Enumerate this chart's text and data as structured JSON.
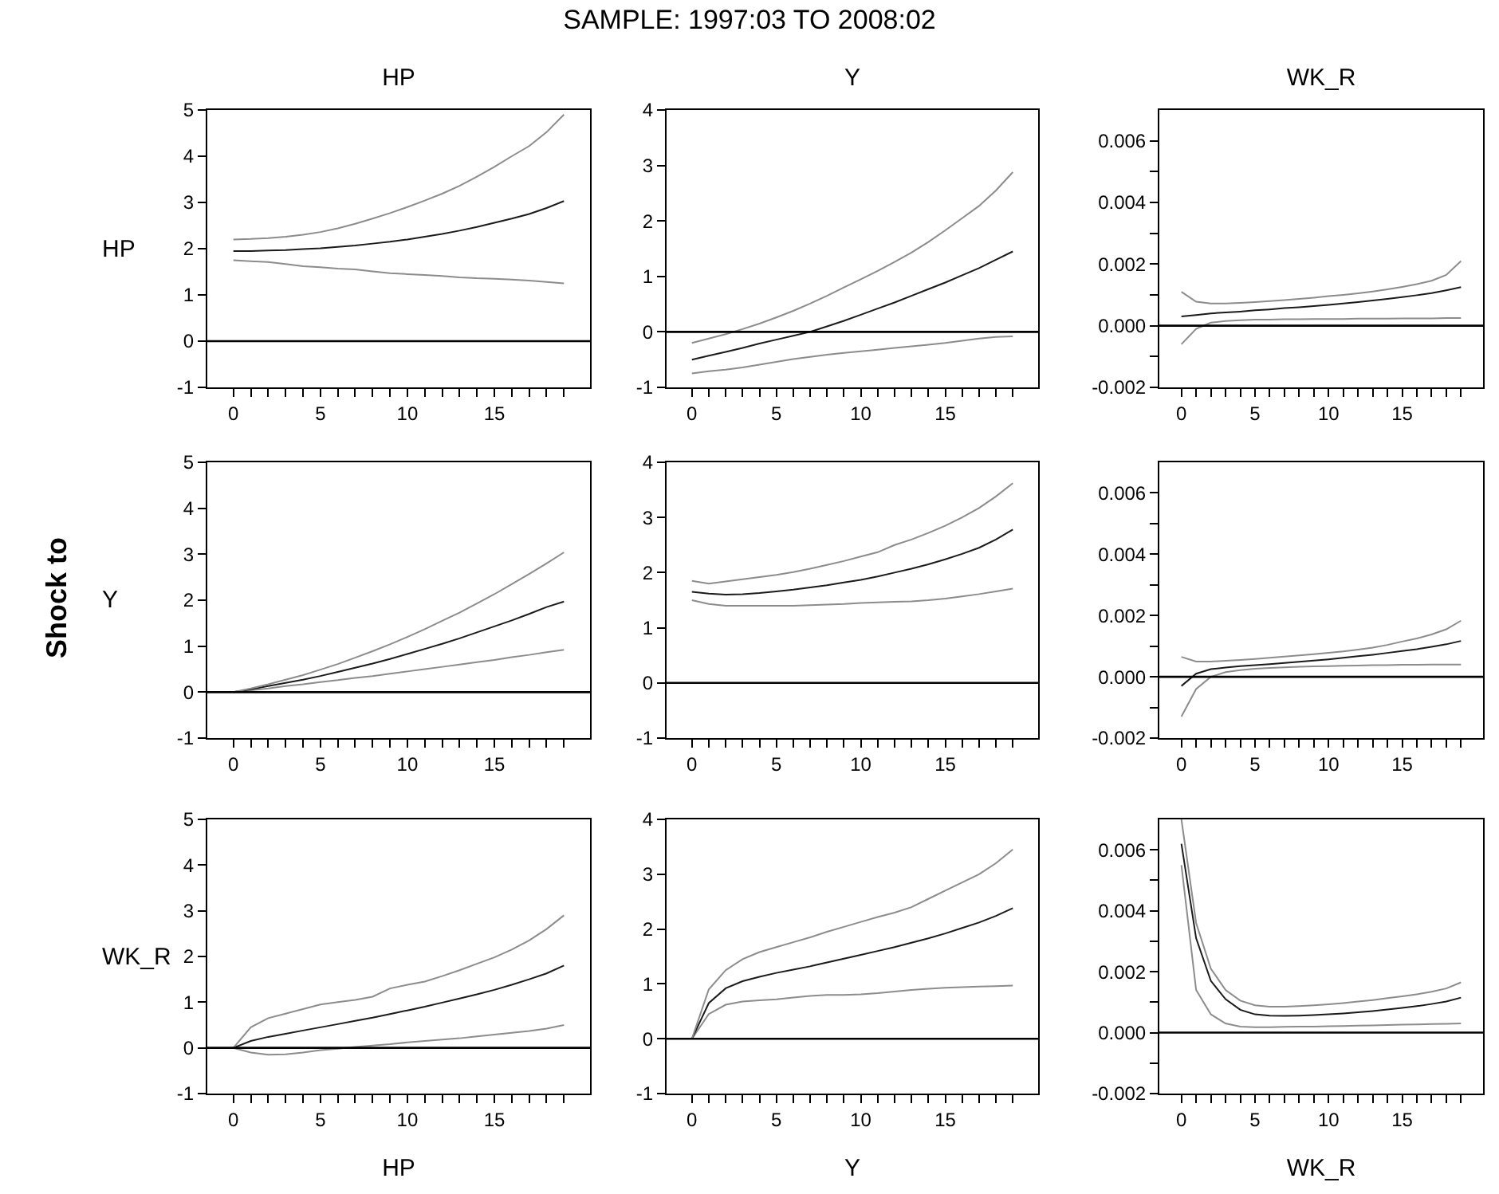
{
  "chart_data": [
    {
      "type": "line",
      "title": "HP",
      "ylabel": "HP",
      "annotations": [
        "SAMPLE: 1997:03 TO 2008:02",
        "Shock to"
      ],
      "x": [
        0,
        1,
        2,
        3,
        4,
        5,
        6,
        7,
        8,
        9,
        10,
        11,
        12,
        13,
        14,
        15,
        16,
        17,
        18,
        19
      ],
      "xlim": [
        -1.5,
        20.5
      ],
      "xticks": [
        0,
        {
          "value": 1,
          "label": null
        },
        {
          "value": 2,
          "label": null
        },
        {
          "value": 3,
          "label": null
        },
        {
          "value": 4,
          "label": null
        },
        5,
        {
          "value": 6,
          "label": null
        },
        {
          "value": 7,
          "label": null
        },
        {
          "value": 8,
          "label": null
        },
        {
          "value": 9,
          "label": null
        },
        10,
        {
          "value": 11,
          "label": null
        },
        {
          "value": 12,
          "label": null
        },
        {
          "value": 13,
          "label": null
        },
        {
          "value": 14,
          "label": null
        },
        15,
        {
          "value": 16,
          "label": null
        },
        {
          "value": 17,
          "label": null
        },
        {
          "value": 18,
          "label": null
        },
        {
          "value": 19,
          "label": null
        }
      ],
      "ylim": [
        -1,
        5
      ],
      "yticks": [
        -1,
        0,
        1,
        2,
        3,
        4,
        5
      ],
      "ref_lines": [
        {
          "axis": "y",
          "value": 0,
          "color": "#000000"
        }
      ],
      "series": [
        {
          "color": "#8c8c8c",
          "values": [
            1.75,
            1.73,
            1.71,
            1.67,
            1.62,
            1.6,
            1.57,
            1.55,
            1.51,
            1.47,
            1.45,
            1.43,
            1.41,
            1.38,
            1.36,
            1.35,
            1.33,
            1.31,
            1.28,
            1.25
          ]
        },
        {
          "color": "#1a1a1a",
          "values": [
            1.95,
            1.95,
            1.96,
            1.97,
            1.99,
            2.01,
            2.04,
            2.07,
            2.11,
            2.15,
            2.2,
            2.26,
            2.32,
            2.39,
            2.47,
            2.56,
            2.65,
            2.75,
            2.88,
            3.03
          ]
        },
        {
          "color": "#8c8c8c",
          "values": [
            2.2,
            2.21,
            2.23,
            2.26,
            2.3,
            2.36,
            2.44,
            2.54,
            2.65,
            2.77,
            2.9,
            3.04,
            3.19,
            3.36,
            3.56,
            3.77,
            4.0,
            4.22,
            4.52,
            4.9
          ]
        }
      ]
    },
    {
      "type": "line",
      "title": "Y",
      "x": [
        0,
        1,
        2,
        3,
        4,
        5,
        6,
        7,
        8,
        9,
        10,
        11,
        12,
        13,
        14,
        15,
        16,
        17,
        18,
        19
      ],
      "xlim": [
        -1.5,
        20.5
      ],
      "xticks": [
        0,
        {
          "value": 1,
          "label": null
        },
        {
          "value": 2,
          "label": null
        },
        {
          "value": 3,
          "label": null
        },
        {
          "value": 4,
          "label": null
        },
        5,
        {
          "value": 6,
          "label": null
        },
        {
          "value": 7,
          "label": null
        },
        {
          "value": 8,
          "label": null
        },
        {
          "value": 9,
          "label": null
        },
        10,
        {
          "value": 11,
          "label": null
        },
        {
          "value": 12,
          "label": null
        },
        {
          "value": 13,
          "label": null
        },
        {
          "value": 14,
          "label": null
        },
        15,
        {
          "value": 16,
          "label": null
        },
        {
          "value": 17,
          "label": null
        },
        {
          "value": 18,
          "label": null
        },
        {
          "value": 19,
          "label": null
        }
      ],
      "ylim": [
        -1,
        4
      ],
      "yticks": [
        -1,
        0,
        1,
        2,
        3,
        4
      ],
      "ref_lines": [
        {
          "axis": "y",
          "value": 0,
          "color": "#000000"
        }
      ],
      "series": [
        {
          "color": "#8c8c8c",
          "values": [
            -0.75,
            -0.71,
            -0.68,
            -0.64,
            -0.59,
            -0.54,
            -0.49,
            -0.45,
            -0.41,
            -0.38,
            -0.35,
            -0.32,
            -0.29,
            -0.26,
            -0.23,
            -0.2,
            -0.16,
            -0.12,
            -0.09,
            -0.08
          ]
        },
        {
          "color": "#1a1a1a",
          "values": [
            -0.5,
            -0.43,
            -0.36,
            -0.29,
            -0.21,
            -0.14,
            -0.07,
            0.0,
            0.1,
            0.2,
            0.31,
            0.42,
            0.53,
            0.65,
            0.77,
            0.89,
            1.02,
            1.15,
            1.3,
            1.45
          ]
        },
        {
          "color": "#8c8c8c",
          "values": [
            -0.2,
            -0.12,
            -0.04,
            0.05,
            0.15,
            0.26,
            0.38,
            0.51,
            0.65,
            0.8,
            0.95,
            1.1,
            1.26,
            1.43,
            1.62,
            1.83,
            2.05,
            2.27,
            2.55,
            2.88
          ]
        }
      ]
    },
    {
      "type": "line",
      "title": "WK_R",
      "x": [
        0,
        1,
        2,
        3,
        4,
        5,
        6,
        7,
        8,
        9,
        10,
        11,
        12,
        13,
        14,
        15,
        16,
        17,
        18,
        19
      ],
      "xlim": [
        -1.5,
        20.5
      ],
      "xticks": [
        0,
        {
          "value": 1,
          "label": null
        },
        {
          "value": 2,
          "label": null
        },
        {
          "value": 3,
          "label": null
        },
        {
          "value": 4,
          "label": null
        },
        5,
        {
          "value": 6,
          "label": null
        },
        {
          "value": 7,
          "label": null
        },
        {
          "value": 8,
          "label": null
        },
        {
          "value": 9,
          "label": null
        },
        10,
        {
          "value": 11,
          "label": null
        },
        {
          "value": 12,
          "label": null
        },
        {
          "value": 13,
          "label": null
        },
        {
          "value": 14,
          "label": null
        },
        15,
        {
          "value": 16,
          "label": null
        },
        {
          "value": 17,
          "label": null
        },
        {
          "value": 18,
          "label": null
        },
        {
          "value": 19,
          "label": null
        }
      ],
      "ylim": [
        -0.002,
        0.007
      ],
      "yticks": [
        -0.002,
        {
          "value": -0.001,
          "label": null
        },
        {
          "value": 0,
          "label": "0.000"
        },
        {
          "value": 0.001,
          "label": null
        },
        0.002,
        {
          "value": 0.003,
          "label": null
        },
        0.004,
        {
          "value": 0.005,
          "label": null
        },
        0.006
      ],
      "ref_lines": [
        {
          "axis": "y",
          "value": 0,
          "color": "#000000"
        }
      ],
      "series": [
        {
          "color": "#8c8c8c",
          "values": [
            -0.0006,
            -0.0001,
            0.0001,
            0.00015,
            0.00018,
            0.0002,
            0.0002,
            0.00021,
            0.00021,
            0.00022,
            0.00022,
            0.00022,
            0.00023,
            0.00023,
            0.00023,
            0.00024,
            0.00024,
            0.00024,
            0.00025,
            0.00025
          ]
        },
        {
          "color": "#1a1a1a",
          "values": [
            0.0003,
            0.00035,
            0.0004,
            0.00043,
            0.00046,
            0.0005,
            0.00053,
            0.00057,
            0.0006,
            0.00064,
            0.00068,
            0.00072,
            0.00077,
            0.00082,
            0.00087,
            0.00093,
            0.00099,
            0.00106,
            0.00115,
            0.00125
          ]
        },
        {
          "color": "#8c8c8c",
          "values": [
            0.0011,
            0.00078,
            0.00072,
            0.00072,
            0.00074,
            0.00077,
            0.0008,
            0.00083,
            0.00087,
            0.00091,
            0.00096,
            0.001,
            0.00105,
            0.00111,
            0.00118,
            0.00126,
            0.00135,
            0.00146,
            0.00165,
            0.0021
          ]
        }
      ]
    },
    {
      "type": "line",
      "ylabel": "Y",
      "x": [
        0,
        1,
        2,
        3,
        4,
        5,
        6,
        7,
        8,
        9,
        10,
        11,
        12,
        13,
        14,
        15,
        16,
        17,
        18,
        19
      ],
      "xlim": [
        -1.5,
        20.5
      ],
      "xticks": [
        0,
        {
          "value": 1,
          "label": null
        },
        {
          "value": 2,
          "label": null
        },
        {
          "value": 3,
          "label": null
        },
        {
          "value": 4,
          "label": null
        },
        5,
        {
          "value": 6,
          "label": null
        },
        {
          "value": 7,
          "label": null
        },
        {
          "value": 8,
          "label": null
        },
        {
          "value": 9,
          "label": null
        },
        10,
        {
          "value": 11,
          "label": null
        },
        {
          "value": 12,
          "label": null
        },
        {
          "value": 13,
          "label": null
        },
        {
          "value": 14,
          "label": null
        },
        15,
        {
          "value": 16,
          "label": null
        },
        {
          "value": 17,
          "label": null
        },
        {
          "value": 18,
          "label": null
        },
        {
          "value": 19,
          "label": null
        }
      ],
      "ylim": [
        -1,
        5
      ],
      "yticks": [
        -1,
        0,
        1,
        2,
        3,
        4,
        5
      ],
      "ref_lines": [
        {
          "axis": "y",
          "value": 0,
          "color": "#000000"
        }
      ],
      "series": [
        {
          "color": "#8c8c8c",
          "values": [
            0,
            0.04,
            0.08,
            0.13,
            0.17,
            0.22,
            0.26,
            0.31,
            0.35,
            0.4,
            0.45,
            0.5,
            0.55,
            0.6,
            0.65,
            0.7,
            0.76,
            0.81,
            0.87,
            0.92
          ]
        },
        {
          "color": "#1a1a1a",
          "values": [
            0,
            0.06,
            0.13,
            0.2,
            0.27,
            0.35,
            0.44,
            0.53,
            0.62,
            0.72,
            0.83,
            0.94,
            1.05,
            1.17,
            1.3,
            1.43,
            1.56,
            1.7,
            1.85,
            1.97
          ]
        },
        {
          "color": "#8c8c8c",
          "values": [
            0,
            0.08,
            0.17,
            0.27,
            0.37,
            0.49,
            0.61,
            0.75,
            0.89,
            1.04,
            1.2,
            1.37,
            1.55,
            1.73,
            1.93,
            2.13,
            2.35,
            2.57,
            2.8,
            3.04
          ]
        }
      ]
    },
    {
      "type": "line",
      "x": [
        0,
        1,
        2,
        3,
        4,
        5,
        6,
        7,
        8,
        9,
        10,
        11,
        12,
        13,
        14,
        15,
        16,
        17,
        18,
        19
      ],
      "xlim": [
        -1.5,
        20.5
      ],
      "xticks": [
        0,
        {
          "value": 1,
          "label": null
        },
        {
          "value": 2,
          "label": null
        },
        {
          "value": 3,
          "label": null
        },
        {
          "value": 4,
          "label": null
        },
        5,
        {
          "value": 6,
          "label": null
        },
        {
          "value": 7,
          "label": null
        },
        {
          "value": 8,
          "label": null
        },
        {
          "value": 9,
          "label": null
        },
        10,
        {
          "value": 11,
          "label": null
        },
        {
          "value": 12,
          "label": null
        },
        {
          "value": 13,
          "label": null
        },
        {
          "value": 14,
          "label": null
        },
        15,
        {
          "value": 16,
          "label": null
        },
        {
          "value": 17,
          "label": null
        },
        {
          "value": 18,
          "label": null
        },
        {
          "value": 19,
          "label": null
        }
      ],
      "ylim": [
        -1,
        4
      ],
      "yticks": [
        -1,
        0,
        1,
        2,
        3,
        4
      ],
      "ref_lines": [
        {
          "axis": "y",
          "value": 0,
          "color": "#000000"
        }
      ],
      "series": [
        {
          "color": "#8c8c8c",
          "values": [
            1.5,
            1.43,
            1.4,
            1.4,
            1.4,
            1.4,
            1.4,
            1.41,
            1.42,
            1.43,
            1.45,
            1.46,
            1.47,
            1.48,
            1.5,
            1.53,
            1.57,
            1.61,
            1.66,
            1.71
          ]
        },
        {
          "color": "#1a1a1a",
          "values": [
            1.65,
            1.62,
            1.6,
            1.61,
            1.63,
            1.66,
            1.69,
            1.73,
            1.77,
            1.82,
            1.87,
            1.93,
            2.0,
            2.07,
            2.15,
            2.24,
            2.34,
            2.45,
            2.6,
            2.78
          ]
        },
        {
          "color": "#8c8c8c",
          "values": [
            1.85,
            1.8,
            1.84,
            1.88,
            1.92,
            1.96,
            2.01,
            2.07,
            2.14,
            2.21,
            2.29,
            2.37,
            2.5,
            2.6,
            2.72,
            2.85,
            3.0,
            3.17,
            3.38,
            3.62
          ]
        }
      ]
    },
    {
      "type": "line",
      "x": [
        0,
        1,
        2,
        3,
        4,
        5,
        6,
        7,
        8,
        9,
        10,
        11,
        12,
        13,
        14,
        15,
        16,
        17,
        18,
        19
      ],
      "xlim": [
        -1.5,
        20.5
      ],
      "xticks": [
        0,
        {
          "value": 1,
          "label": null
        },
        {
          "value": 2,
          "label": null
        },
        {
          "value": 3,
          "label": null
        },
        {
          "value": 4,
          "label": null
        },
        5,
        {
          "value": 6,
          "label": null
        },
        {
          "value": 7,
          "label": null
        },
        {
          "value": 8,
          "label": null
        },
        {
          "value": 9,
          "label": null
        },
        10,
        {
          "value": 11,
          "label": null
        },
        {
          "value": 12,
          "label": null
        },
        {
          "value": 13,
          "label": null
        },
        {
          "value": 14,
          "label": null
        },
        15,
        {
          "value": 16,
          "label": null
        },
        {
          "value": 17,
          "label": null
        },
        {
          "value": 18,
          "label": null
        },
        {
          "value": 19,
          "label": null
        }
      ],
      "ylim": [
        -0.002,
        0.007
      ],
      "yticks": [
        -0.002,
        {
          "value": -0.001,
          "label": null
        },
        {
          "value": 0,
          "label": "0.000"
        },
        {
          "value": 0.001,
          "label": null
        },
        0.002,
        {
          "value": 0.003,
          "label": null
        },
        0.004,
        {
          "value": 0.005,
          "label": null
        },
        0.006
      ],
      "ref_lines": [
        {
          "axis": "y",
          "value": 0,
          "color": "#000000"
        }
      ],
      "series": [
        {
          "color": "#8c8c8c",
          "values": [
            -0.0013,
            -0.0004,
            0.0,
            0.00015,
            0.00022,
            0.00026,
            0.00029,
            0.00031,
            0.00033,
            0.00034,
            0.00035,
            0.00036,
            0.00037,
            0.00038,
            0.00038,
            0.00039,
            0.00039,
            0.0004,
            0.0004,
            0.0004
          ]
        },
        {
          "color": "#1a1a1a",
          "values": [
            -0.0003,
            0.0001,
            0.00025,
            0.0003,
            0.00035,
            0.00038,
            0.00041,
            0.00045,
            0.00049,
            0.00053,
            0.00057,
            0.00062,
            0.00067,
            0.00072,
            0.00078,
            0.00084,
            0.0009,
            0.00098,
            0.00106,
            0.00117
          ]
        },
        {
          "color": "#8c8c8c",
          "values": [
            0.00065,
            0.0005,
            0.0005,
            0.00052,
            0.00055,
            0.00058,
            0.00062,
            0.00066,
            0.0007,
            0.00074,
            0.00078,
            0.00083,
            0.00089,
            0.00095,
            0.00104,
            0.00115,
            0.00125,
            0.00138,
            0.00155,
            0.00183
          ]
        }
      ]
    },
    {
      "type": "line",
      "xlabel": "HP",
      "ylabel": "WK_R",
      "x": [
        0,
        1,
        2,
        3,
        4,
        5,
        6,
        7,
        8,
        9,
        10,
        11,
        12,
        13,
        14,
        15,
        16,
        17,
        18,
        19
      ],
      "xlim": [
        -1.5,
        20.5
      ],
      "xticks": [
        0,
        {
          "value": 1,
          "label": null
        },
        {
          "value": 2,
          "label": null
        },
        {
          "value": 3,
          "label": null
        },
        {
          "value": 4,
          "label": null
        },
        5,
        {
          "value": 6,
          "label": null
        },
        {
          "value": 7,
          "label": null
        },
        {
          "value": 8,
          "label": null
        },
        {
          "value": 9,
          "label": null
        },
        10,
        {
          "value": 11,
          "label": null
        },
        {
          "value": 12,
          "label": null
        },
        {
          "value": 13,
          "label": null
        },
        {
          "value": 14,
          "label": null
        },
        15,
        {
          "value": 16,
          "label": null
        },
        {
          "value": 17,
          "label": null
        },
        {
          "value": 18,
          "label": null
        },
        {
          "value": 19,
          "label": null
        }
      ],
      "ylim": [
        -1,
        5
      ],
      "yticks": [
        -1,
        0,
        1,
        2,
        3,
        4,
        5
      ],
      "ref_lines": [
        {
          "axis": "y",
          "value": 0,
          "color": "#000000"
        }
      ],
      "series": [
        {
          "color": "#8c8c8c",
          "values": [
            0,
            -0.1,
            -0.15,
            -0.14,
            -0.1,
            -0.05,
            -0.02,
            0.02,
            0.05,
            0.08,
            0.12,
            0.15,
            0.18,
            0.21,
            0.25,
            0.29,
            0.33,
            0.37,
            0.42,
            0.5
          ]
        },
        {
          "color": "#1a1a1a",
          "values": [
            0,
            0.15,
            0.24,
            0.31,
            0.38,
            0.45,
            0.52,
            0.59,
            0.66,
            0.74,
            0.82,
            0.9,
            0.99,
            1.08,
            1.17,
            1.27,
            1.38,
            1.5,
            1.63,
            1.8
          ]
        },
        {
          "color": "#8c8c8c",
          "values": [
            0,
            0.45,
            0.65,
            0.75,
            0.85,
            0.95,
            1.0,
            1.05,
            1.12,
            1.3,
            1.38,
            1.45,
            1.57,
            1.7,
            1.84,
            1.98,
            2.15,
            2.35,
            2.6,
            2.9
          ]
        }
      ]
    },
    {
      "type": "line",
      "xlabel": "Y",
      "x": [
        0,
        1,
        2,
        3,
        4,
        5,
        6,
        7,
        8,
        9,
        10,
        11,
        12,
        13,
        14,
        15,
        16,
        17,
        18,
        19
      ],
      "xlim": [
        -1.5,
        20.5
      ],
      "xticks": [
        0,
        {
          "value": 1,
          "label": null
        },
        {
          "value": 2,
          "label": null
        },
        {
          "value": 3,
          "label": null
        },
        {
          "value": 4,
          "label": null
        },
        5,
        {
          "value": 6,
          "label": null
        },
        {
          "value": 7,
          "label": null
        },
        {
          "value": 8,
          "label": null
        },
        {
          "value": 9,
          "label": null
        },
        10,
        {
          "value": 11,
          "label": null
        },
        {
          "value": 12,
          "label": null
        },
        {
          "value": 13,
          "label": null
        },
        {
          "value": 14,
          "label": null
        },
        15,
        {
          "value": 16,
          "label": null
        },
        {
          "value": 17,
          "label": null
        },
        {
          "value": 18,
          "label": null
        },
        {
          "value": 19,
          "label": null
        }
      ],
      "ylim": [
        -1,
        4
      ],
      "yticks": [
        -1,
        0,
        1,
        2,
        3,
        4
      ],
      "ref_lines": [
        {
          "axis": "y",
          "value": 0,
          "color": "#000000"
        }
      ],
      "series": [
        {
          "color": "#8c8c8c",
          "values": [
            0,
            0.45,
            0.62,
            0.68,
            0.7,
            0.72,
            0.75,
            0.78,
            0.8,
            0.8,
            0.81,
            0.83,
            0.86,
            0.89,
            0.91,
            0.93,
            0.94,
            0.95,
            0.96,
            0.97
          ]
        },
        {
          "color": "#1a1a1a",
          "values": [
            0,
            0.65,
            0.92,
            1.05,
            1.13,
            1.2,
            1.26,
            1.32,
            1.39,
            1.46,
            1.53,
            1.6,
            1.67,
            1.75,
            1.83,
            1.92,
            2.02,
            2.12,
            2.24,
            2.38
          ]
        },
        {
          "color": "#8c8c8c",
          "values": [
            0,
            0.9,
            1.25,
            1.45,
            1.58,
            1.67,
            1.76,
            1.85,
            1.95,
            2.04,
            2.13,
            2.22,
            2.3,
            2.4,
            2.55,
            2.7,
            2.85,
            3.0,
            3.2,
            3.45
          ]
        }
      ]
    },
    {
      "type": "line",
      "xlabel": "WK_R",
      "x": [
        0,
        1,
        2,
        3,
        4,
        5,
        6,
        7,
        8,
        9,
        10,
        11,
        12,
        13,
        14,
        15,
        16,
        17,
        18,
        19
      ],
      "xlim": [
        -1.5,
        20.5
      ],
      "xticks": [
        0,
        {
          "value": 1,
          "label": null
        },
        {
          "value": 2,
          "label": null
        },
        {
          "value": 3,
          "label": null
        },
        {
          "value": 4,
          "label": null
        },
        5,
        {
          "value": 6,
          "label": null
        },
        {
          "value": 7,
          "label": null
        },
        {
          "value": 8,
          "label": null
        },
        {
          "value": 9,
          "label": null
        },
        10,
        {
          "value": 11,
          "label": null
        },
        {
          "value": 12,
          "label": null
        },
        {
          "value": 13,
          "label": null
        },
        {
          "value": 14,
          "label": null
        },
        15,
        {
          "value": 16,
          "label": null
        },
        {
          "value": 17,
          "label": null
        },
        {
          "value": 18,
          "label": null
        },
        {
          "value": 19,
          "label": null
        }
      ],
      "ylim": [
        -0.002,
        0.007
      ],
      "yticks": [
        -0.002,
        {
          "value": -0.001,
          "label": null
        },
        {
          "value": 0,
          "label": "0.000"
        },
        {
          "value": 0.001,
          "label": null
        },
        0.002,
        {
          "value": 0.003,
          "label": null
        },
        0.004,
        {
          "value": 0.005,
          "label": null
        },
        0.006
      ],
      "ref_lines": [
        {
          "axis": "y",
          "value": 0,
          "color": "#000000"
        }
      ],
      "series": [
        {
          "color": "#8c8c8c",
          "values": [
            0.0055,
            0.0014,
            0.0006,
            0.0003,
            0.0002,
            0.00018,
            0.00018,
            0.00019,
            0.0002,
            0.0002,
            0.00021,
            0.00022,
            0.00023,
            0.00024,
            0.00025,
            0.00026,
            0.00027,
            0.00028,
            0.00029,
            0.0003
          ]
        },
        {
          "color": "#1a1a1a",
          "values": [
            0.0062,
            0.0031,
            0.0017,
            0.0011,
            0.00075,
            0.0006,
            0.00056,
            0.00055,
            0.00056,
            0.00058,
            0.0006,
            0.00063,
            0.00067,
            0.00071,
            0.00076,
            0.00081,
            0.00087,
            0.00094,
            0.00102,
            0.00115
          ]
        },
        {
          "color": "#8c8c8c",
          "values": [
            0.007,
            0.0036,
            0.0021,
            0.0014,
            0.00105,
            0.0009,
            0.00085,
            0.00085,
            0.00087,
            0.0009,
            0.00093,
            0.00097,
            0.00102,
            0.00107,
            0.00113,
            0.00119,
            0.00126,
            0.00134,
            0.00145,
            0.00165
          ]
        }
      ]
    }
  ]
}
